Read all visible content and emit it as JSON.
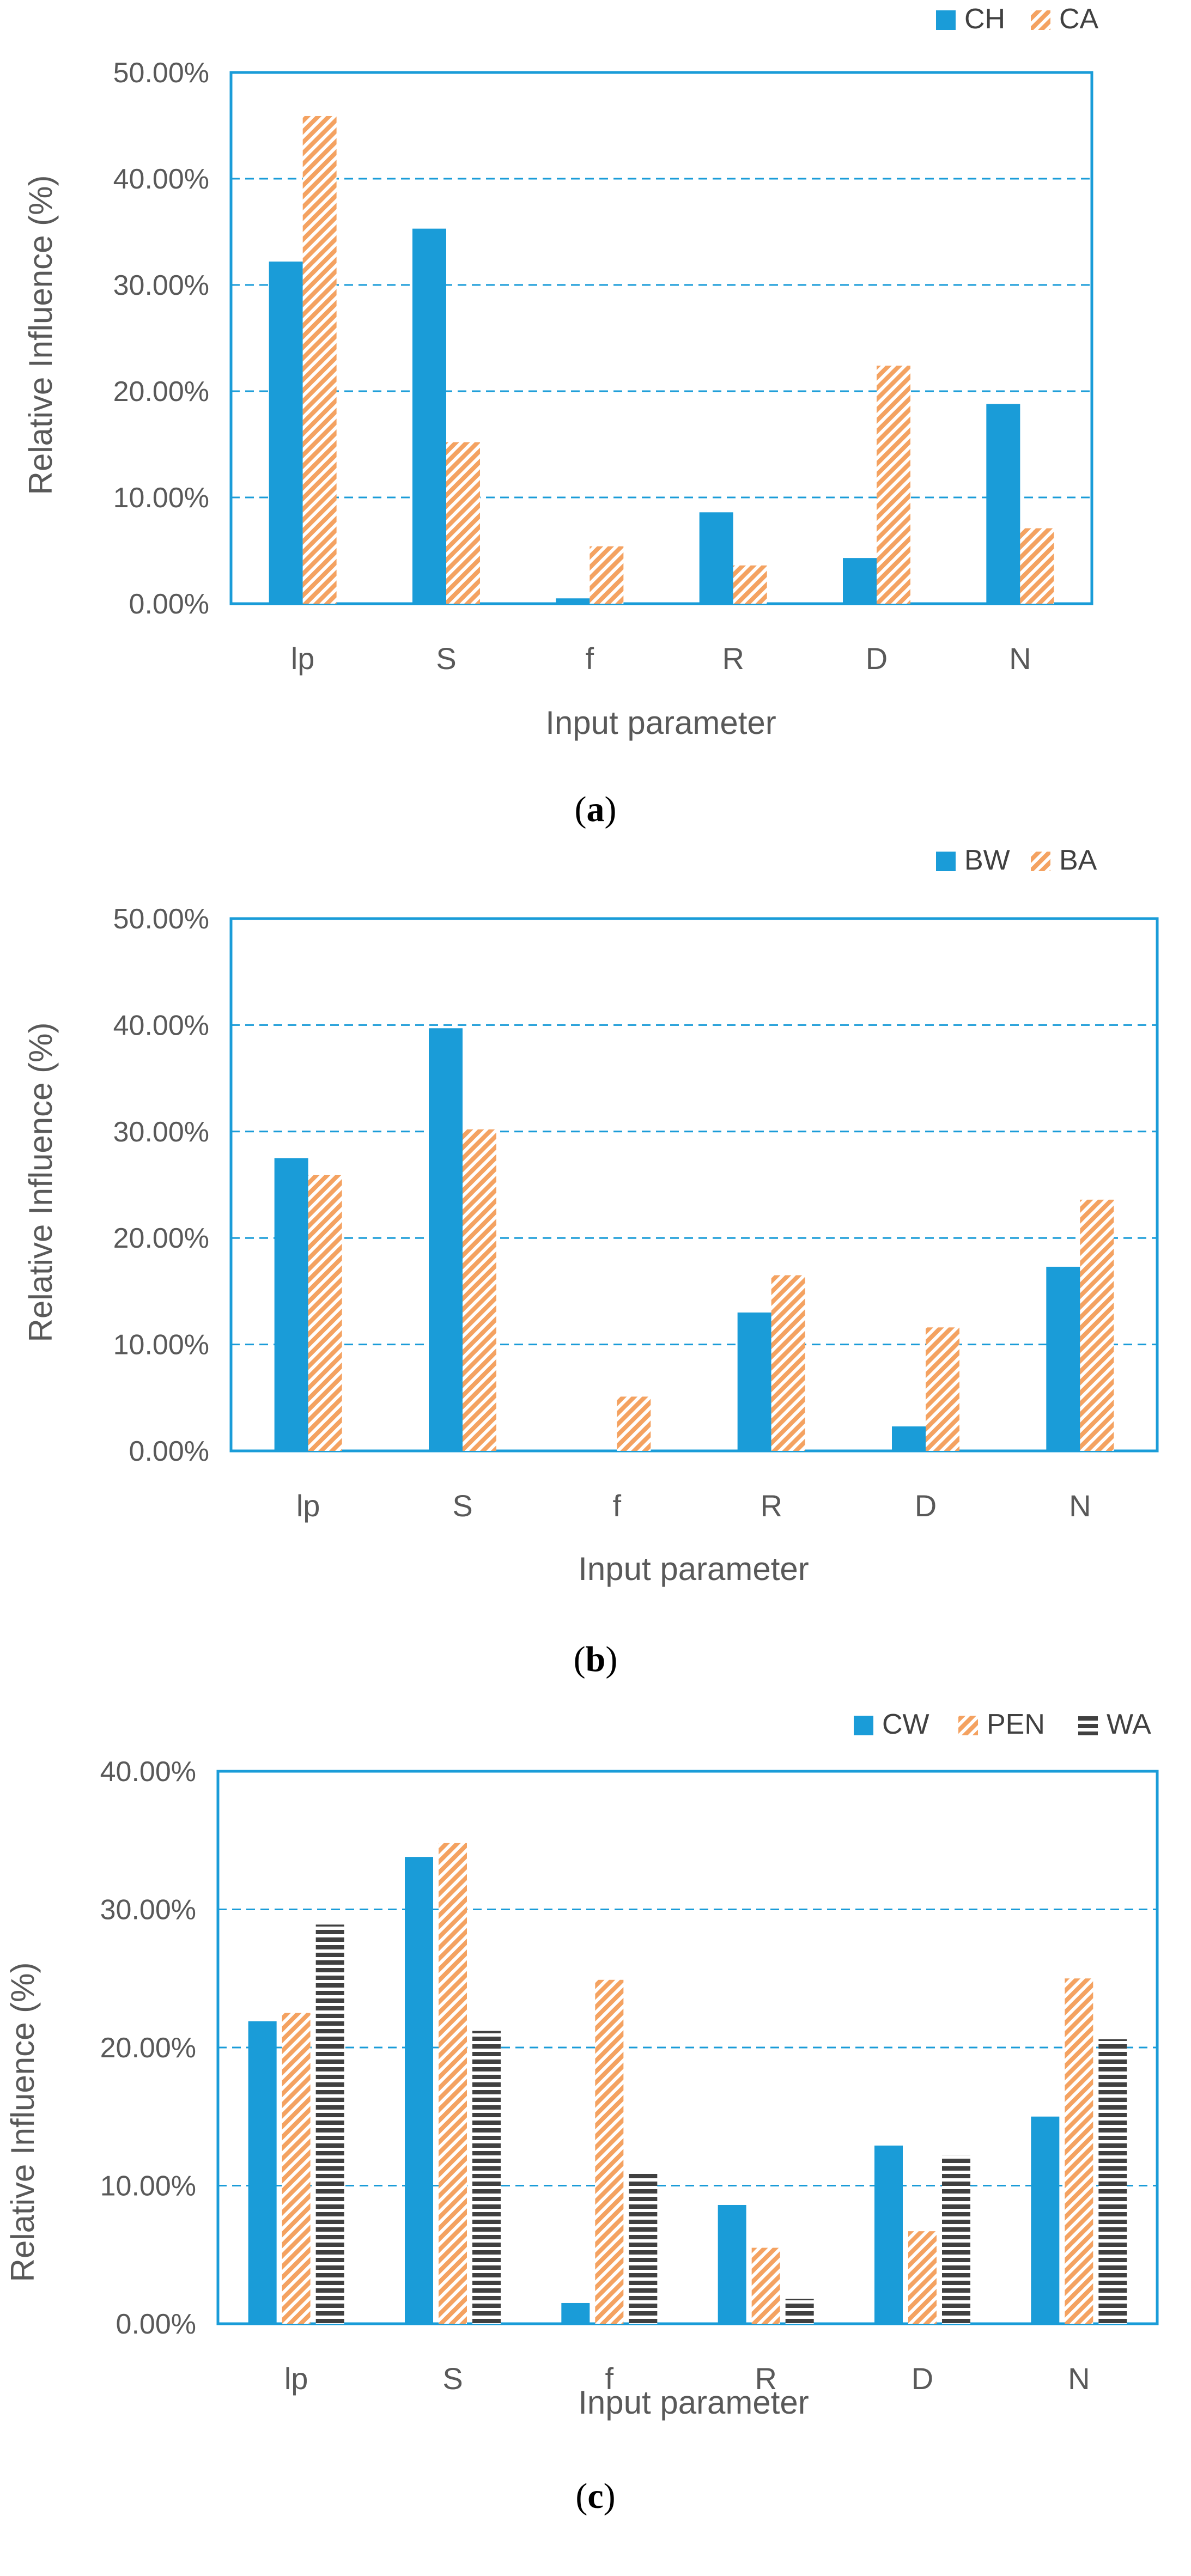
{
  "chart_data": [
    {
      "type": "bar",
      "caption": "a",
      "categories": [
        "lp",
        "S",
        "f",
        "R",
        "D",
        "N"
      ],
      "series": [
        {
          "name": "CH",
          "values": [
            0.322,
            0.353,
            0.005,
            0.086,
            0.043,
            0.188
          ],
          "color": "#1a9cd8",
          "pattern": "solid"
        },
        {
          "name": "CA",
          "values": [
            0.459,
            0.152,
            0.054,
            0.036,
            0.224,
            0.071
          ],
          "color": "#f4a261",
          "pattern": "diagonal"
        }
      ],
      "xlabel": "Input parameter",
      "ylabel": "Relative Influence (%)",
      "ylim": [
        0,
        0.5
      ],
      "yticks": [
        0,
        0.1,
        0.2,
        0.3,
        0.4,
        0.5
      ],
      "ytick_labels": [
        "0.00%",
        "10.00%",
        "20.00%",
        "30.00%",
        "40.00%",
        "50.00%"
      ],
      "grid": "dashed horizontal",
      "legend": "top-right"
    },
    {
      "type": "bar",
      "caption": "b",
      "categories": [
        "lp",
        "S",
        "f",
        "R",
        "D",
        "N"
      ],
      "series": [
        {
          "name": "BW",
          "values": [
            0.275,
            0.397,
            0.0,
            0.13,
            0.023,
            0.173
          ],
          "color": "#1a9cd8",
          "pattern": "solid"
        },
        {
          "name": "BA",
          "values": [
            0.259,
            0.302,
            0.051,
            0.165,
            0.116,
            0.236
          ],
          "color": "#f4a261",
          "pattern": "diagonal"
        }
      ],
      "xlabel": "Input parameter",
      "ylabel": "Relative Influence (%)",
      "ylim": [
        0,
        0.5
      ],
      "yticks": [
        0,
        0.1,
        0.2,
        0.3,
        0.4,
        0.5
      ],
      "ytick_labels": [
        "0.00%",
        "10.00%",
        "20.00%",
        "30.00%",
        "40.00%",
        "50.00%"
      ],
      "grid": "dashed horizontal",
      "legend": "top-right"
    },
    {
      "type": "bar",
      "caption": "c",
      "categories": [
        "lp",
        "S",
        "f",
        "R",
        "D",
        "N"
      ],
      "series": [
        {
          "name": "CW",
          "values": [
            0.219,
            0.338,
            0.015,
            0.086,
            0.129,
            0.15
          ],
          "color": "#1a9cd8",
          "pattern": "solid"
        },
        {
          "name": "PEN",
          "values": [
            0.225,
            0.348,
            0.249,
            0.055,
            0.067,
            0.25
          ],
          "color": "#f4a261",
          "pattern": "diagonal"
        },
        {
          "name": "WA",
          "values": [
            0.289,
            0.212,
            0.109,
            0.018,
            0.122,
            0.206
          ],
          "color": "#404040",
          "pattern": "horizontal"
        }
      ],
      "xlabel": "Input parameter",
      "ylabel": "Relative Influence (%)",
      "ylim": [
        0,
        0.4
      ],
      "yticks": [
        0,
        0.1,
        0.2,
        0.3,
        0.4
      ],
      "ytick_labels": [
        "0.00%",
        "10.00%",
        "20.00%",
        "30.00%",
        "40.00%"
      ],
      "grid": "dashed horizontal",
      "legend": "top-right"
    }
  ]
}
